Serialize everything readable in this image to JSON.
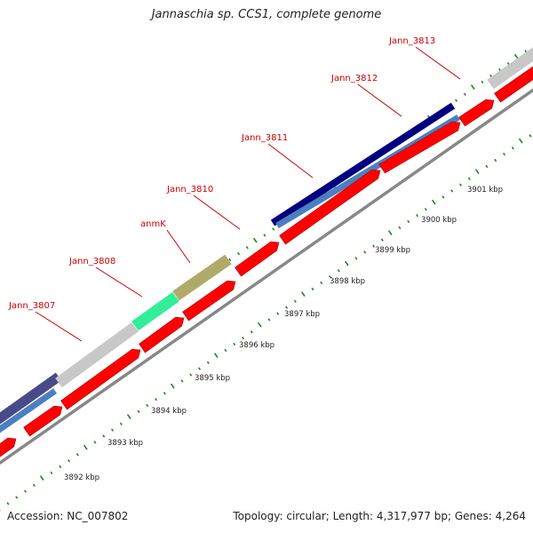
{
  "title": "Jannaschia sp. CCS1, complete genome",
  "footer": {
    "accession": "Accession: NC_007802",
    "summary": "Topology: circular; Length: 4,317,977 bp; Genes: 4,264"
  },
  "colors": {
    "cds_forward": "#ff0000",
    "gene_label": "#cc0000",
    "navy": "#00007f",
    "steel_blue": "#4a7fc0",
    "gray": "#c8c8c8",
    "mint": "#33ee99",
    "khaki": "#b0aa6a",
    "slate": "#4a4a8a",
    "tick": "#1b8a1b",
    "backbone": "#888888"
  },
  "gene_labels": [
    {
      "name": "Jann_3807"
    },
    {
      "name": "Jann_3808"
    },
    {
      "name": "anmK"
    },
    {
      "name": "Jann_3810"
    },
    {
      "name": "Jann_3811"
    },
    {
      "name": "Jann_3812"
    },
    {
      "name": "Jann_3813"
    }
  ],
  "kbp_labels": [
    {
      "text": "3892 kbp"
    },
    {
      "text": "3893 kbp"
    },
    {
      "text": "3894 kbp"
    },
    {
      "text": "3895 kbp"
    },
    {
      "text": "3896 kbp"
    },
    {
      "text": "3897 kbp"
    },
    {
      "text": "3898 kbp"
    },
    {
      "text": "3899 kbp"
    },
    {
      "text": "3900 kbp"
    },
    {
      "text": "3901 kbp"
    }
  ]
}
